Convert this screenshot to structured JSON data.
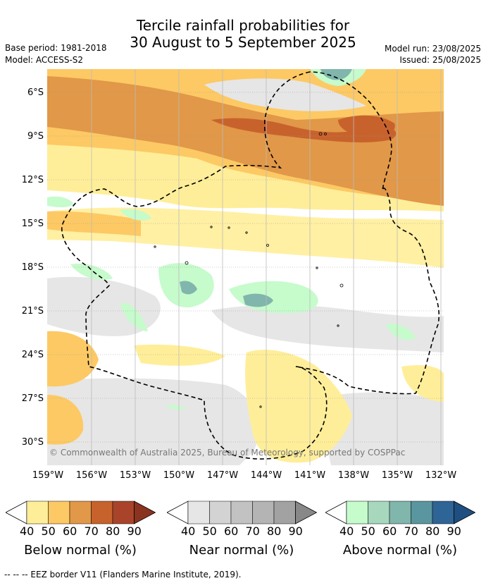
{
  "header": {
    "title_line1": "Tercile rainfall probabilities for",
    "title_line2": "30 August to 5 September 2025",
    "base_period": "Base period: 1981-2018",
    "model": "Model: ACCESS-S2",
    "model_run": "Model run: 23/08/2025",
    "issued": "Issued: 25/08/2025"
  },
  "map": {
    "lon_labels": [
      "159°W",
      "156°W",
      "153°W",
      "150°W",
      "147°W",
      "144°W",
      "141°W",
      "138°W",
      "135°W",
      "132°W"
    ],
    "lat_labels": [
      "6°S",
      "9°S",
      "12°S",
      "15°S",
      "18°S",
      "21°S",
      "24°S",
      "27°S",
      "30°S"
    ],
    "copyright": "© Commonwealth of Australia 2025, Bureau of Meteorology, supported by COSPPac"
  },
  "colorbars": [
    {
      "label": "Below normal (%)",
      "ticks": [
        "40",
        "50",
        "60",
        "70",
        "80",
        "90"
      ],
      "colors": [
        "#ffee99",
        "#fdc964",
        "#e19848",
        "#c8622c",
        "#a9442a",
        "#8a3420"
      ]
    },
    {
      "label": "Near normal (%)",
      "ticks": [
        "40",
        "50",
        "60",
        "70",
        "80",
        "90"
      ],
      "colors": [
        "#e6e6e6",
        "#d3d3d3",
        "#c2c2c2",
        "#b4b4b4",
        "#a2a2a2",
        "#888888"
      ]
    },
    {
      "label": "Above normal (%)",
      "ticks": [
        "40",
        "50",
        "60",
        "70",
        "80",
        "90"
      ],
      "colors": [
        "#c6fbcc",
        "#a7d8be",
        "#80b6ac",
        "#5a969f",
        "#2e6496",
        "#1f4f80"
      ]
    }
  ],
  "footer": "--  --  -- EEZ border V11 (Flanders Marine Institute, 2019)."
}
